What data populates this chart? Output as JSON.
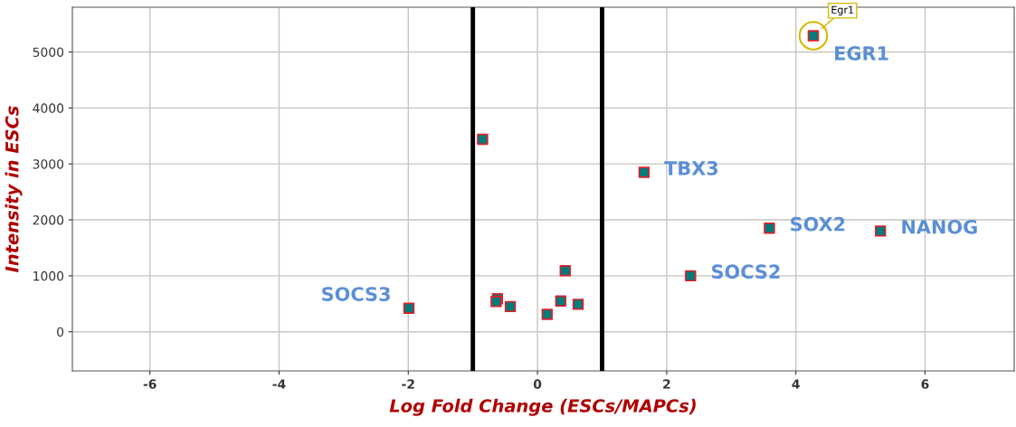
{
  "chart_data": {
    "type": "scatter",
    "xlabel": "Log Fold Change (ESCs/MAPCs)",
    "ylabel": "Intensity in ESCs",
    "series": [
      {
        "color": "#007b7b",
        "x": [
          -1.99,
          -0.85,
          -0.62,
          -0.64,
          -0.42,
          0.15,
          0.43,
          0.36,
          0.63,
          1.65,
          2.37,
          3.59,
          5.31,
          4.27
        ],
        "values": [
          420,
          3440,
          590,
          540,
          450,
          310,
          1090,
          550,
          490,
          2850,
          1000,
          1850,
          1800,
          5290
        ]
      }
    ],
    "marker": "square",
    "xlim": [
      -7.2,
      7.38
    ],
    "xticks": [
      -6,
      -4,
      -2,
      0,
      2,
      4,
      6
    ],
    "ylim": [
      -700,
      5800
    ],
    "yticks": [
      0,
      1000,
      2000,
      3000,
      4000,
      5000
    ],
    "grid": true,
    "ref_lines": [
      {
        "axis": "x",
        "value": -1,
        "color": "#000000"
      },
      {
        "axis": "x",
        "value": 1,
        "color": "#000000"
      }
    ],
    "annotations": [
      {
        "text": "SOCS3",
        "x": -1.99,
        "y": 420
      },
      {
        "text": "TBX3",
        "x": 1.65,
        "y": 2850
      },
      {
        "text": "SOCS2",
        "x": 2.37,
        "y": 1000
      },
      {
        "text": "SOX2",
        "x": 3.59,
        "y": 1850
      },
      {
        "text": "NANOG",
        "x": 5.31,
        "y": 1800
      },
      {
        "text": "EGR1",
        "x": 4.27,
        "y": 5290
      },
      {
        "text": "Egr1",
        "x": 4.27,
        "y": 5290
      }
    ]
  }
}
